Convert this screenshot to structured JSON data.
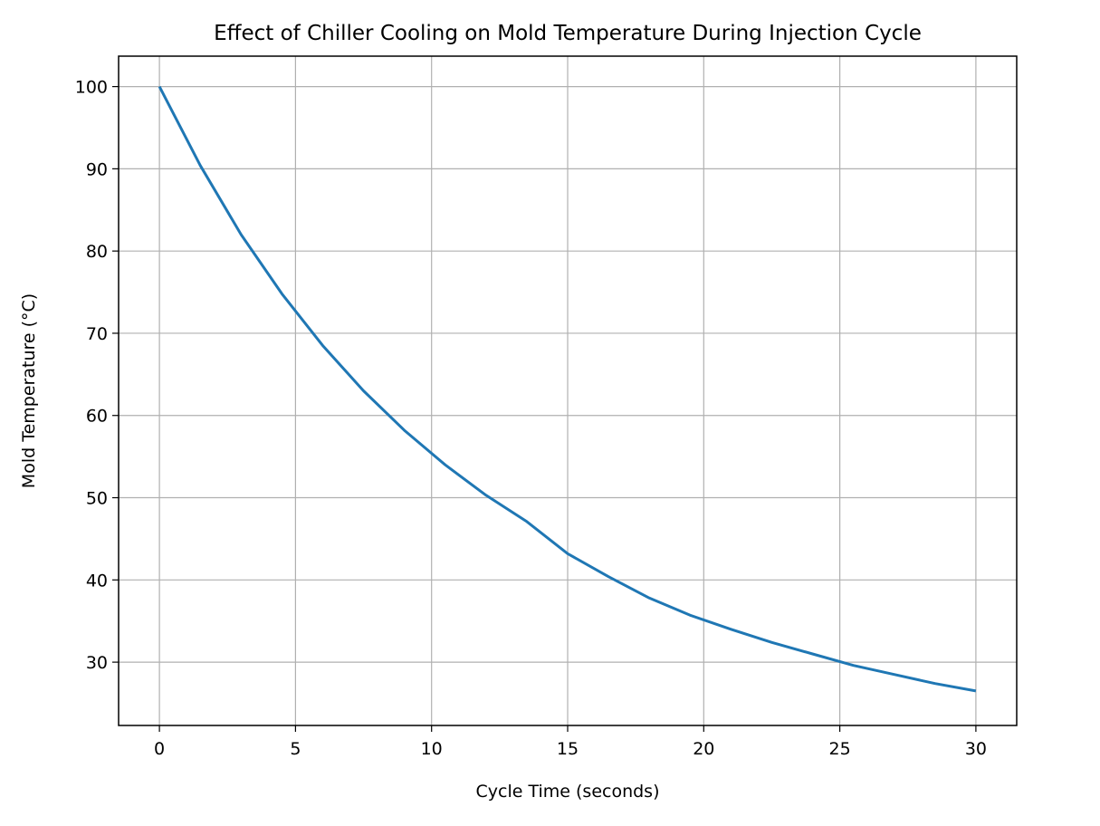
{
  "chart_data": {
    "type": "line",
    "title": "Effect of Chiller Cooling on Mold Temperature During Injection Cycle",
    "xlabel": "Cycle Time (seconds)",
    "ylabel": "Mold Temperature (°C)",
    "xlim": [
      -1.5,
      31.5
    ],
    "ylim": [
      22.3,
      103.7
    ],
    "xticks": [
      0,
      5,
      10,
      15,
      20,
      25,
      30
    ],
    "yticks": [
      30,
      40,
      50,
      60,
      70,
      80,
      90,
      100
    ],
    "grid": true,
    "series": [
      {
        "color": "#1f77b4",
        "x": [
          0,
          1.5,
          3,
          4.5,
          6,
          7.5,
          9,
          10.5,
          12,
          13.5,
          15,
          16.5,
          18,
          19.5,
          21,
          22.5,
          24,
          25.5,
          27,
          28.5,
          30
        ],
        "y": [
          100,
          90.4,
          82.0,
          74.8,
          68.5,
          63.0,
          58.2,
          54.0,
          50.3,
          47.1,
          43.2,
          40.4,
          37.8,
          35.7,
          34.0,
          32.4,
          31.0,
          29.6,
          28.5,
          27.4,
          26.5
        ]
      }
    ]
  }
}
